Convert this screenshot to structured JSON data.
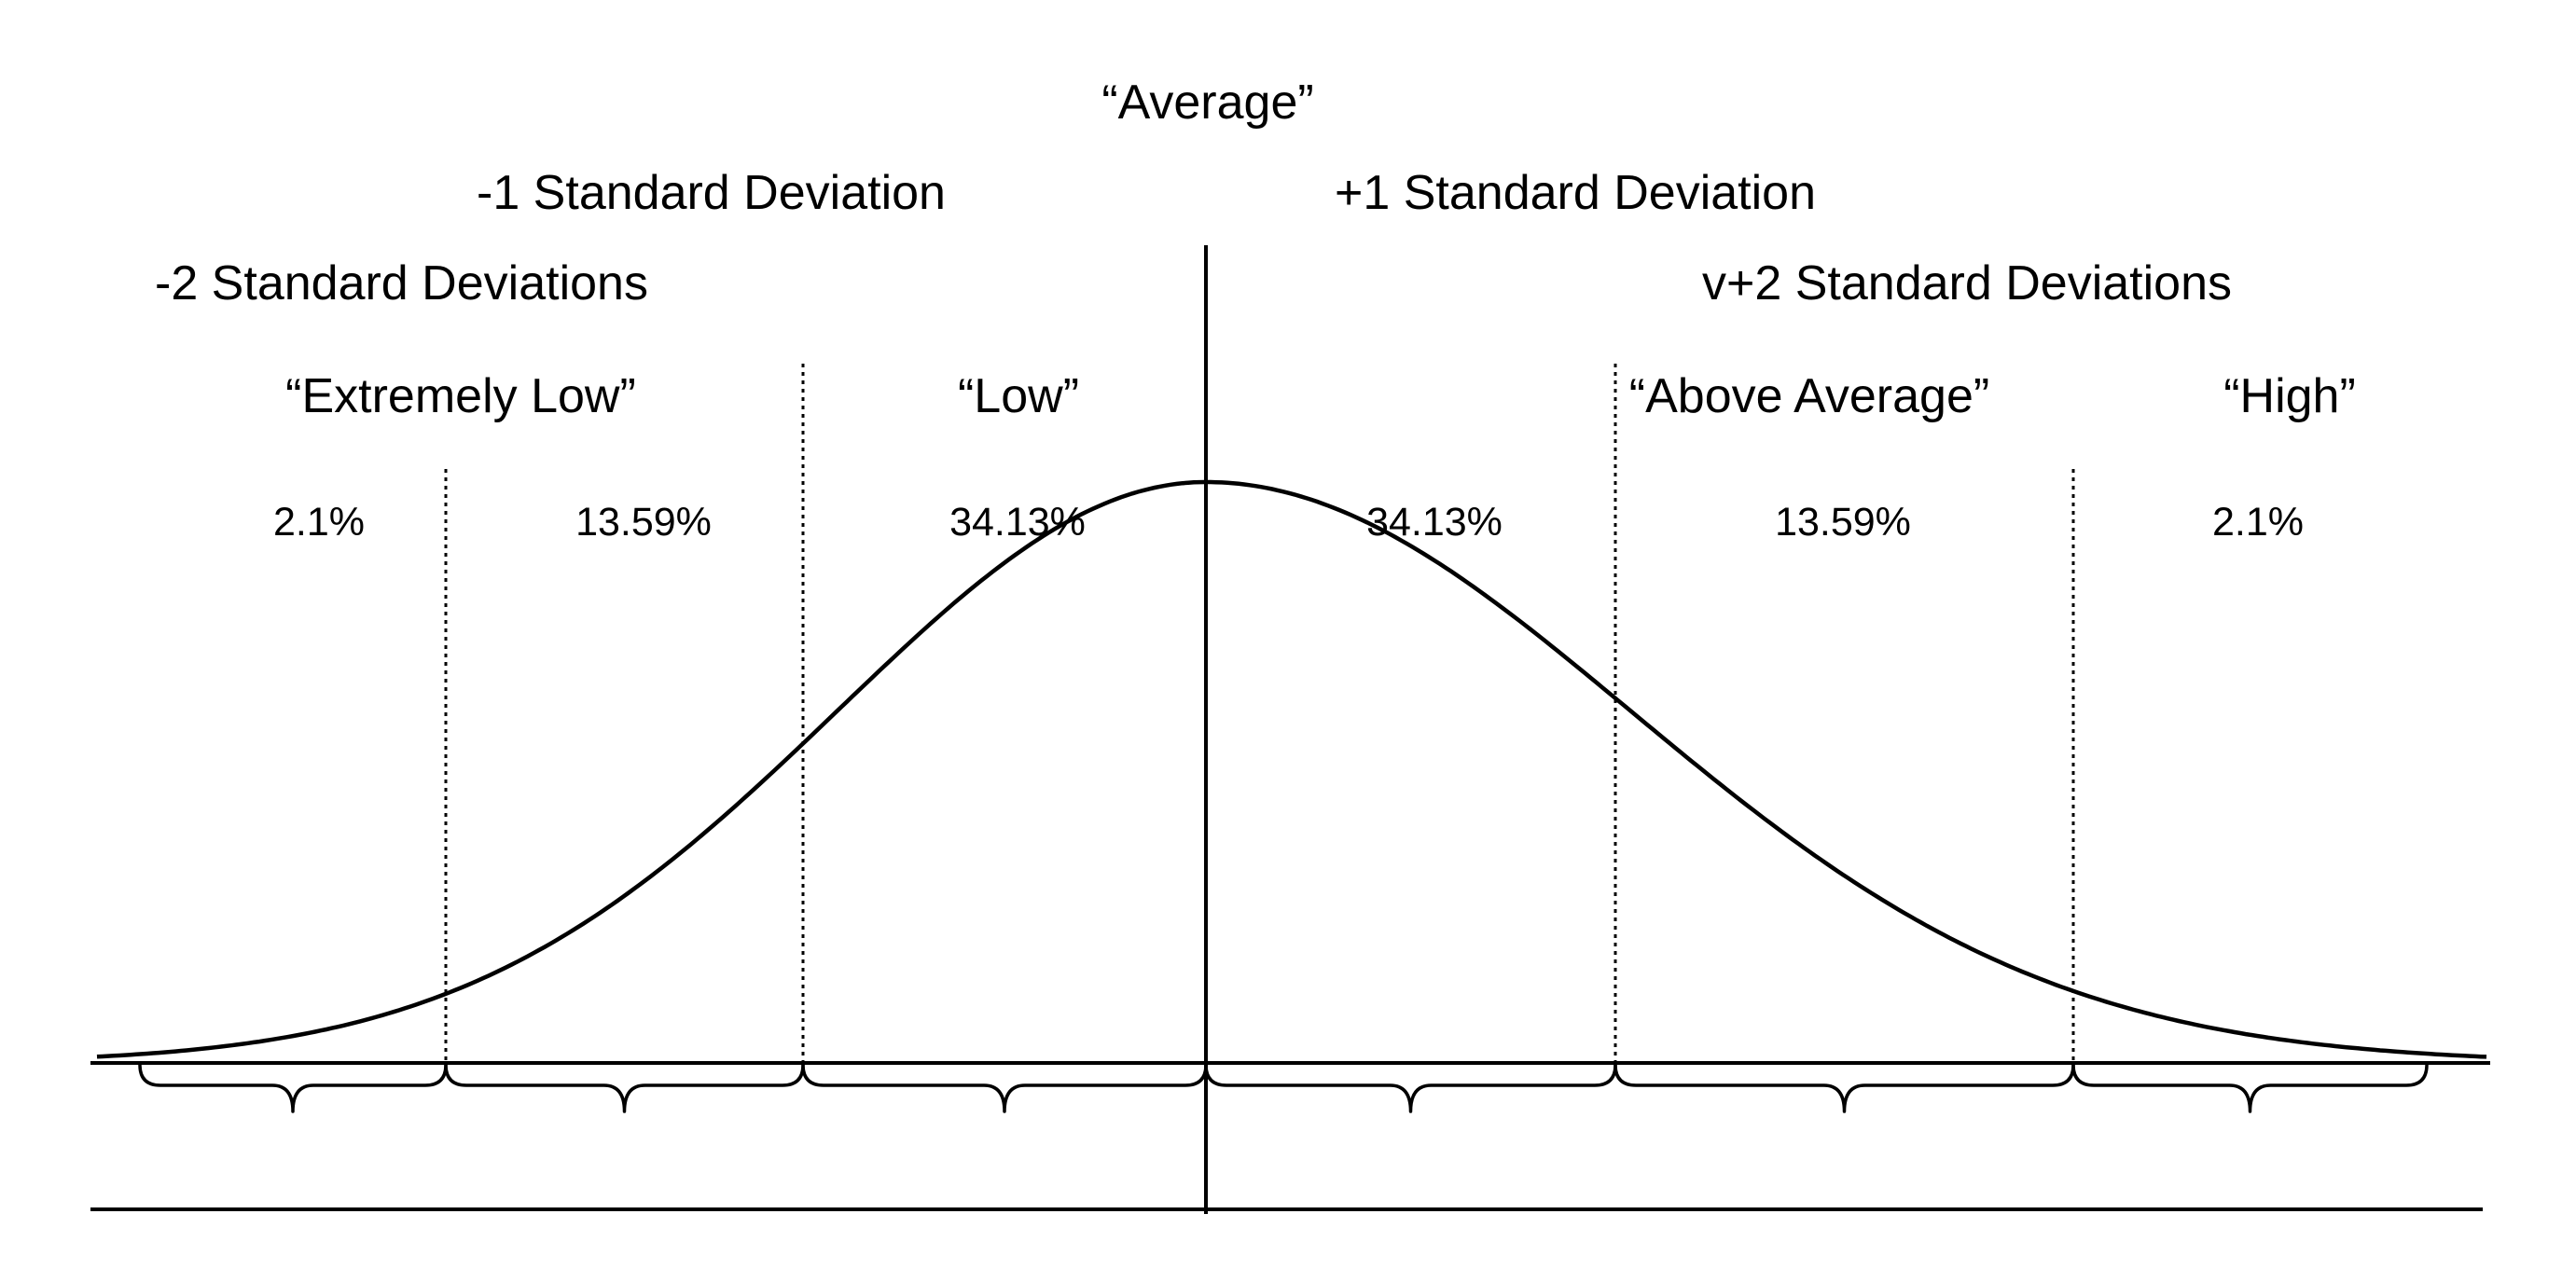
{
  "diagram": {
    "top_label": "“Average”",
    "deviation_labels": {
      "minus_one": "-1 Standard Deviation",
      "plus_one": "+1 Standard Deviation",
      "minus_two": "-2 Standard Deviations",
      "plus_two": "v+2 Standard Deviations"
    },
    "category_labels": {
      "extremely_low": "“Extremely Low”",
      "low": "“Low”",
      "above_average": "“Above Average”",
      "high": "“High”"
    },
    "percentages": [
      "2.1%",
      "13.59%",
      "34.13%",
      "34.13%",
      "13.59%",
      "2.1%"
    ]
  },
  "colors": {
    "line": "#000000",
    "background": "#ffffff"
  }
}
